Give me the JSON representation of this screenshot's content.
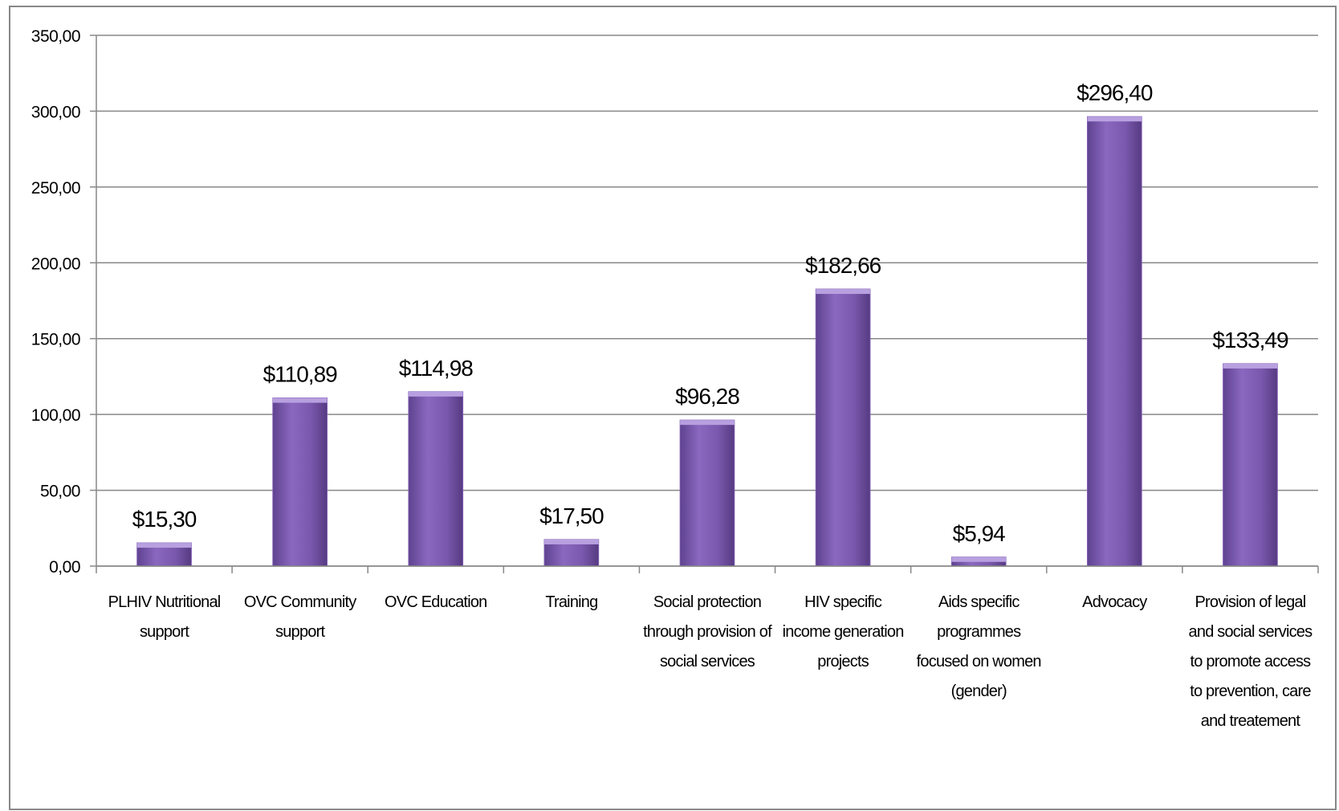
{
  "chart_data": {
    "type": "bar",
    "categories": [
      "PLHIV Nutritional support",
      "OVC Community support",
      "OVC Education",
      "Training",
      "Social protection through provision of social services",
      "HIV specific income generation projects",
      "Aids specific programmes focused on women (gender)",
      "Advocacy",
      "Provision of legal and social services to promote access to prevention, care and treatement"
    ],
    "values": [
      15.3,
      110.89,
      114.98,
      17.5,
      96.28,
      182.66,
      5.94,
      296.4,
      133.49
    ],
    "value_labels": [
      "$15,30",
      "$110,89",
      "$114,98",
      "$17,50",
      "$96,28",
      "$182,66",
      "$5,94",
      "$296,40",
      "$133,49"
    ],
    "color": "#7e5cb0",
    "ylim": [
      0,
      350
    ],
    "yticks": [
      {
        "value": 0,
        "label": "0,00"
      },
      {
        "value": 50,
        "label": "50,00"
      },
      {
        "value": 100,
        "label": "100,00"
      },
      {
        "value": 150,
        "label": "150,00"
      },
      {
        "value": 200,
        "label": "200,00"
      },
      {
        "value": 250,
        "label": "250,00"
      },
      {
        "value": 300,
        "label": "300,00"
      },
      {
        "value": 350,
        "label": "350,00"
      }
    ],
    "grid": true
  }
}
